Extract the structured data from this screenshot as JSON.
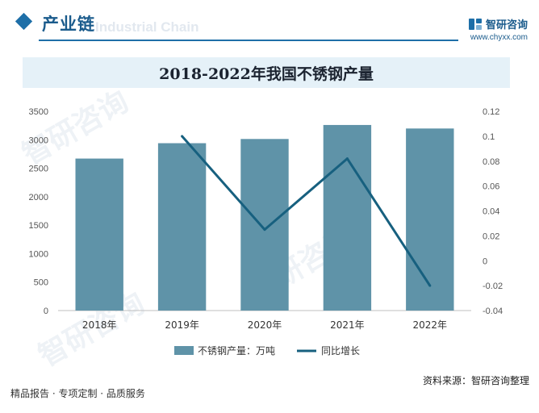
{
  "header": {
    "section_title": "产业链",
    "section_ghost": "Industrial Chain",
    "brand_name": "智研咨询",
    "brand_url": "www.chyxx.com"
  },
  "colors": {
    "bar": "#5f93a8",
    "line": "#17607f",
    "accent": "#1e6fa8"
  },
  "chart_data": {
    "type": "bar",
    "title": "2018-2022年我国不锈钢产量",
    "categories": [
      "2018年",
      "2019年",
      "2020年",
      "2021年",
      "2022年"
    ],
    "series": [
      {
        "name": "不锈钢产量：万吨",
        "type": "bar",
        "axis": "left",
        "values": [
          2670,
          2940,
          3014,
          3260,
          3198
        ]
      },
      {
        "name": "同比增长",
        "type": "line",
        "axis": "right",
        "values": [
          null,
          0.1,
          0.025,
          0.082,
          -0.02
        ]
      }
    ],
    "y_left": {
      "min": 0,
      "max": 3500,
      "ticks": [
        "0",
        "500",
        "1000",
        "1500",
        "2000",
        "2500",
        "3000",
        "3500"
      ]
    },
    "y_right": {
      "min": -0.04,
      "max": 0.12,
      "ticks": [
        "-0.04",
        "-0.02",
        "0",
        "0.02",
        "0.04",
        "0.06",
        "0.08",
        "0.1",
        "0.12"
      ]
    },
    "grid": false,
    "legend_position": "bottom"
  },
  "footer": {
    "left": "精品报告 · 专项定制 · 品质服务",
    "source": "资料来源：智研咨询整理"
  }
}
